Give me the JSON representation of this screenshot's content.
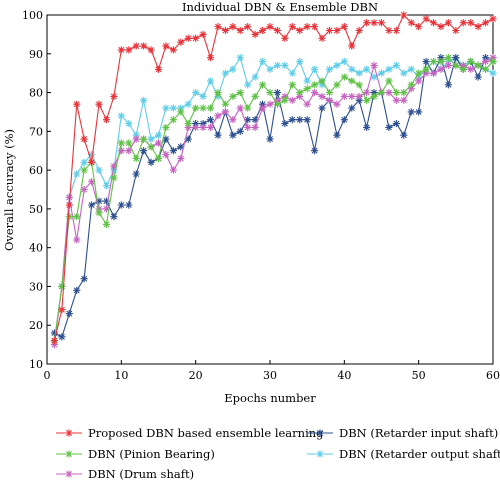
{
  "chart_data": {
    "type": "line",
    "title": "Individual DBN & Ensemble DBN",
    "xlabel": "Epochs number",
    "ylabel": "Overall accuracy (%)",
    "xlim": [
      0,
      60
    ],
    "ylim": [
      10,
      100
    ],
    "xticks": [
      "0",
      "10",
      "20",
      "30",
      "40",
      "50",
      "60"
    ],
    "yticks": [
      "10",
      "20",
      "30",
      "40",
      "50",
      "60",
      "70",
      "80",
      "90",
      "100"
    ],
    "grid": false,
    "legend_position": "bottom",
    "x": [
      1,
      2,
      3,
      4,
      5,
      6,
      7,
      8,
      9,
      10,
      11,
      12,
      13,
      14,
      15,
      16,
      17,
      18,
      19,
      20,
      21,
      22,
      23,
      24,
      25,
      26,
      27,
      28,
      29,
      30,
      31,
      32,
      33,
      34,
      35,
      36,
      37,
      38,
      39,
      40,
      41,
      42,
      43,
      44,
      45,
      46,
      47,
      48,
      49,
      50,
      51,
      52,
      53,
      54,
      55,
      56,
      57,
      58,
      59,
      60
    ],
    "series": [
      {
        "name": "Proposed DBN based ensemble learning",
        "color": "#e8333a",
        "values": [
          16,
          24,
          51,
          77,
          68,
          62,
          77,
          73,
          79,
          91,
          91,
          92,
          92,
          91,
          86,
          92,
          91,
          93,
          94,
          94,
          95,
          89,
          97,
          96,
          97,
          96,
          97,
          95,
          96,
          97,
          96,
          94,
          97,
          96,
          97,
          97,
          94,
          96,
          96,
          97,
          92,
          96,
          98,
          98,
          98,
          96,
          96,
          100,
          98,
          97,
          99,
          98,
          97,
          98,
          96,
          98,
          98,
          97,
          98,
          99
        ]
      },
      {
        "name": "DBN (Pinion Bearing)",
        "color": "#5fc145",
        "values": [
          16,
          30,
          48,
          48,
          60,
          62,
          49,
          46,
          58,
          67,
          67,
          63,
          68,
          66,
          63,
          71,
          73,
          75,
          72,
          76,
          76,
          76,
          80,
          77,
          79,
          80,
          76,
          79,
          82,
          80,
          77,
          78,
          82,
          80,
          81,
          82,
          83,
          80,
          82,
          84,
          83,
          82,
          78,
          79,
          80,
          83,
          80,
          80,
          82,
          85,
          86,
          88,
          88,
          89,
          87,
          86,
          88,
          87,
          86,
          88
        ]
      },
      {
        "name": "DBN (Drum shaft)",
        "color": "#c763c0",
        "values": [
          15,
          30,
          53,
          42,
          55,
          57,
          50,
          50,
          61,
          65,
          65,
          68,
          68,
          66,
          67,
          64,
          60,
          63,
          71,
          71,
          71,
          71,
          74,
          75,
          73,
          76,
          71,
          71,
          76,
          77,
          78,
          79,
          78,
          79,
          77,
          80,
          79,
          78,
          77,
          79,
          79,
          79,
          80,
          87,
          80,
          80,
          78,
          78,
          81,
          83,
          85,
          85,
          86,
          87,
          87,
          87,
          86,
          87,
          88,
          89
        ]
      },
      {
        "name": "DBN (Retarder input shaft)",
        "color": "#2d4f8f",
        "values": [
          18,
          17,
          23,
          29,
          32,
          51,
          52,
          52,
          48,
          51,
          51,
          59,
          65,
          62,
          63,
          68,
          65,
          66,
          68,
          72,
          72,
          73,
          69,
          75,
          69,
          70,
          73,
          73,
          77,
          68,
          80,
          72,
          73,
          73,
          73,
          65,
          76,
          78,
          69,
          73,
          76,
          78,
          71,
          80,
          80,
          71,
          72,
          69,
          75,
          75,
          88,
          85,
          89,
          82,
          89,
          86,
          88,
          84,
          89,
          88
        ]
      },
      {
        "name": "DBN (Retarder output shaft)",
        "color": "#5fcde8",
        "values": [
          16,
          30,
          53,
          59,
          62,
          64,
          60,
          56,
          60,
          74,
          72,
          69,
          78,
          68,
          69,
          76,
          76,
          76,
          77,
          80,
          79,
          83,
          79,
          85,
          86,
          89,
          82,
          84,
          88,
          86,
          87,
          87,
          85,
          88,
          83,
          86,
          82,
          86,
          87,
          88,
          86,
          85,
          86,
          84,
          85,
          86,
          87,
          85,
          86,
          84,
          86,
          88,
          86,
          88,
          89,
          87,
          88,
          87,
          86,
          85
        ]
      }
    ]
  }
}
